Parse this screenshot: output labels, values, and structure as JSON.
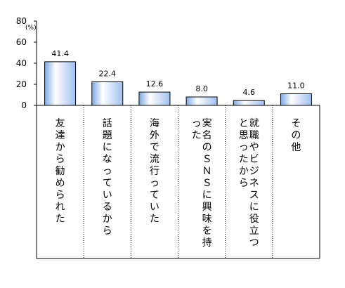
{
  "chart_data": {
    "type": "bar",
    "title": "",
    "xlabel": "",
    "ylabel": "",
    "unit_label": "(%)",
    "ylim": [
      0,
      80
    ],
    "yticks": [
      0,
      20,
      40,
      60,
      80
    ],
    "grid": false,
    "categories": [
      "友達から勧められた",
      "話題になっているから",
      "海外で流行っていた",
      "実名のＳＮＳに興味を持った",
      "就職やビジネスに役立つと思ったから",
      "その他"
    ],
    "values": [
      41.4,
      22.4,
      12.6,
      8.0,
      4.6,
      11.0
    ],
    "value_labels": [
      "41.4",
      "22.4",
      "12.6",
      "8.0",
      "4.6",
      "11.0"
    ],
    "bar_color": "#cfe3ff",
    "bar_highlight": "#ffffff",
    "bar_shade": "#7fa7e0",
    "bar_edge": "#000000"
  }
}
